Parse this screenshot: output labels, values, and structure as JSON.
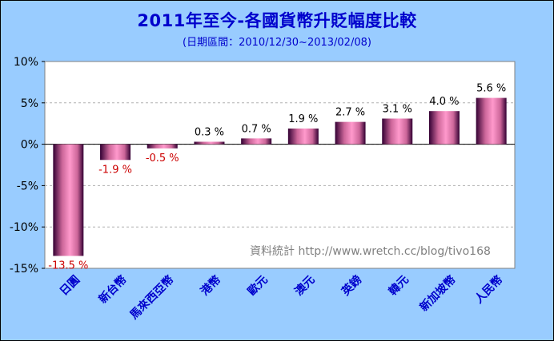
{
  "chart_data": {
    "type": "bar",
    "title": "2011年至今-各國貨幣升貶幅度比較",
    "subtitle": "(日期區間：2010/12/30~2013/02/08)",
    "watermark": "資料統計 http://www.wretch.cc/blog/tivo168",
    "categories": [
      "日圓",
      "新台幣",
      "馬來西亞幣",
      "港幣",
      "歐元",
      "澳元",
      "英鎊",
      "韓元",
      "新加坡幣",
      "人民幣"
    ],
    "values": [
      -13.5,
      -1.9,
      -0.5,
      0.3,
      0.7,
      1.9,
      2.7,
      3.1,
      4.0,
      5.6
    ],
    "data_labels": [
      "-13.5 %",
      "-1.9 %",
      "-0.5 %",
      "0.3 %",
      "0.7 %",
      "1.9 %",
      "2.7 %",
      "3.1 %",
      "4.0 %",
      "5.6 %"
    ],
    "yticks": [
      10,
      5,
      0,
      -5,
      -10,
      -15
    ],
    "ytick_labels": [
      "10%",
      "5%",
      "0%",
      "-5%",
      "-10%",
      "-15%"
    ],
    "ylim": [
      -15,
      10
    ],
    "xlabel": "",
    "ylabel": "",
    "grid": true,
    "legend": "none",
    "colors": {
      "background": "#99ccff",
      "plot_area": "#ffffff",
      "bar_center": "#ff99cc",
      "bar_edge": "#330033",
      "title": "#0000cc",
      "category_label": "#0000cc",
      "negative_label": "#cc0000",
      "positive_label": "#000000",
      "grid": "#b0b0b0"
    }
  }
}
